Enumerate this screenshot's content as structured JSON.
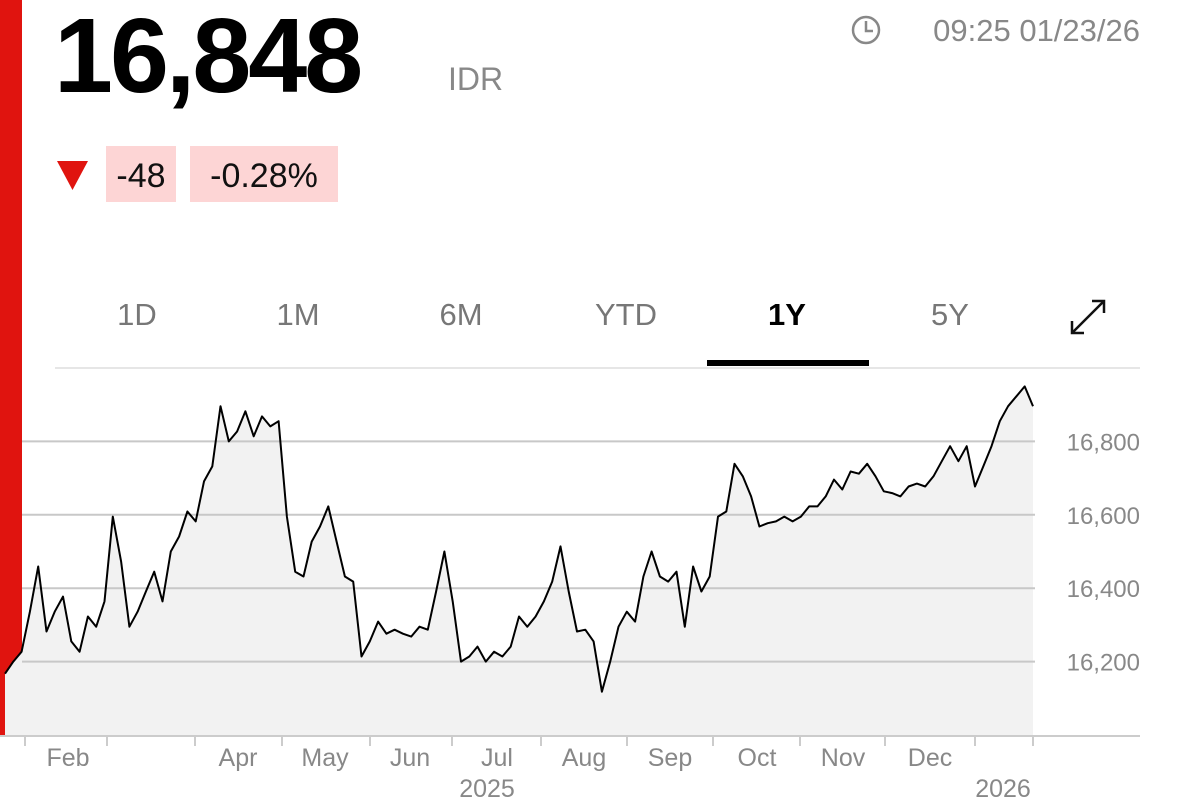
{
  "header": {
    "price": "16,848",
    "currency": "IDR",
    "timestamp": "09:25 01/23/26",
    "change": "-48",
    "change_percent": "-0.28%"
  },
  "tabs": {
    "items": [
      "1D",
      "1M",
      "6M",
      "YTD",
      "1Y",
      "5Y"
    ],
    "selected": 4
  },
  "chart_data": {
    "type": "line",
    "series": [
      {
        "color": "#000000",
        "fill": "#f2f2f2",
        "values": [
          16167,
          16200,
          16227,
          16336,
          16459,
          16282,
          16336,
          16377,
          16255,
          16227,
          16323,
          16295,
          16364,
          16595,
          16473,
          16295,
          16336,
          16391,
          16445,
          16364,
          16500,
          16541,
          16609,
          16582,
          16691,
          16732,
          16896,
          16800,
          16827,
          16882,
          16814,
          16868,
          16841,
          16855,
          16595,
          16445,
          16432,
          16527,
          16568,
          16623,
          16527,
          16432,
          16418,
          16214,
          16255,
          16309,
          16276,
          16287,
          16276,
          16268,
          16295,
          16287,
          16391,
          16500,
          16364,
          16200,
          16214,
          16241,
          16200,
          16227,
          16214,
          16241,
          16323,
          16295,
          16323,
          16364,
          16418,
          16514,
          16391,
          16282,
          16287,
          16255,
          16118,
          16200,
          16295,
          16336,
          16309,
          16432,
          16500,
          16432,
          16418,
          16445,
          16295,
          16459,
          16391,
          16432,
          16595,
          16609,
          16739,
          16705,
          16650,
          16568,
          16577,
          16582,
          16595,
          16582,
          16595,
          16623,
          16623,
          16650,
          16696,
          16669,
          16718,
          16712,
          16739,
          16705,
          16664,
          16659,
          16650,
          16677,
          16685,
          16677,
          16705,
          16746,
          16787,
          16746,
          16787,
          16677,
          16732,
          16787,
          16855,
          16896,
          16923,
          16950,
          16896
        ]
      }
    ],
    "month_labels": [
      "Feb",
      "Apr",
      "May",
      "Jun",
      "Jul",
      "Aug",
      "Sep",
      "Oct",
      "Nov",
      "Dec"
    ],
    "year_labels": [
      "2025",
      "2026"
    ],
    "ylim": [
      16000,
      17000
    ],
    "yticks": [
      {
        "value": 16200,
        "label": "16,200"
      },
      {
        "value": 16400,
        "label": "16,400"
      },
      {
        "value": 16600,
        "label": "16,600"
      },
      {
        "value": 16800,
        "label": "16,800"
      }
    ],
    "grid": true
  }
}
